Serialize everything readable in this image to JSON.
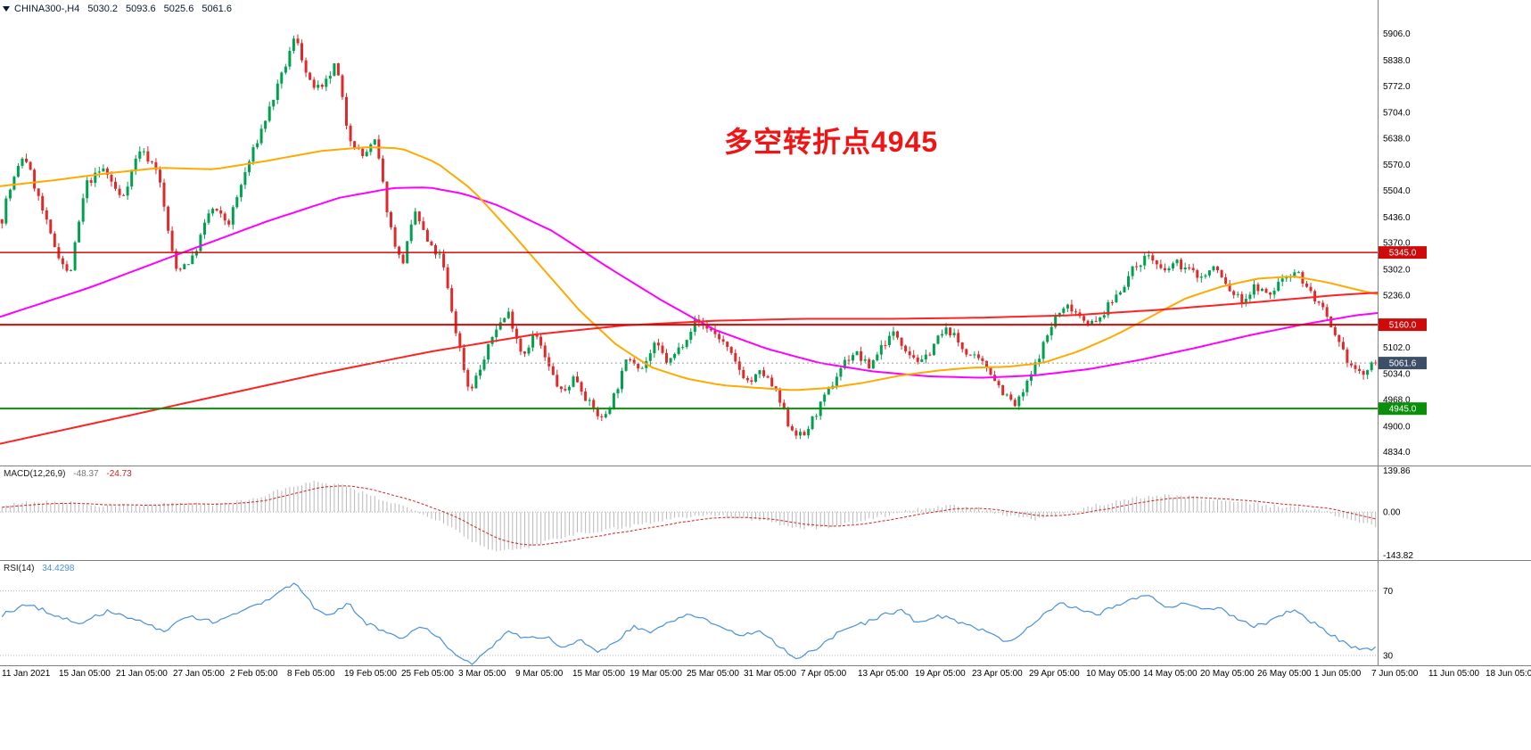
{
  "header": {
    "symbol": "CHINA300-,H4",
    "open": "5030.2",
    "high": "5093.6",
    "low": "5025.6",
    "close": "5061.6"
  },
  "annotation": {
    "text": "多空转折点4945",
    "color": "#f01414"
  },
  "macd_panel": {
    "label": "MACD(12,26,9)",
    "main_value": "-48.37",
    "signal_value": "-24.73",
    "axis_max": "139.86",
    "axis_zero": "0.00",
    "axis_min": "-143.82"
  },
  "rsi_panel": {
    "label": "RSI(14)",
    "value": "34.4298",
    "level_high": "70",
    "level_low": "30"
  },
  "time_axis": {
    "labels": [
      "11 Jan 2021",
      "15 Jan 05:00",
      "21 Jan 05:00",
      "27 Jan 05:00",
      "2 Feb 05:00",
      "8 Feb 05:00",
      "19 Feb 05:00",
      "25 Feb 05:00",
      "3 Mar 05:00",
      "9 Mar 05:00",
      "15 Mar 05:00",
      "19 Mar 05:00",
      "25 Mar 05:00",
      "31 Mar 05:00",
      "7 Apr 05:00",
      "13 Apr 05:00",
      "19 Apr 05:00",
      "23 Apr 05:00",
      "29 Apr 05:00",
      "10 May 05:00",
      "14 May 05:00",
      "20 May 05:00",
      "26 May 05:00",
      "1 Jun 05:00",
      "7 Jun 05:00",
      "11 Jun 05:00",
      "18 Jun 05:00"
    ]
  },
  "chart_data": {
    "type": "candlestick",
    "symbol": "CHINA300-",
    "timeframe": "H4",
    "last_bar": {
      "open": 5030.2,
      "high": 5093.6,
      "low": 5025.6,
      "close": 5061.6
    },
    "price_scale": {
      "min": 4790,
      "max": 5960,
      "ticks": [
        5906.0,
        5838.0,
        5772.0,
        5704.0,
        5638.0,
        5570.0,
        5504.0,
        5436.0,
        5370.0,
        5302.0,
        5236.0,
        5102.0,
        5034.0,
        4968.0,
        4900.0,
        4834.0
      ]
    },
    "hlines": [
      {
        "price": 5345.0,
        "color": "#cf0a0a",
        "width": 1.4,
        "style": "solid",
        "badge": "5345.0",
        "badge_color": "#cf0a0a"
      },
      {
        "price": 5160.0,
        "color": "#cf0a0a",
        "width": 2,
        "style": "solid",
        "badge": "5160.0",
        "badge_color": "#cf0a0a"
      },
      {
        "price": 4945.0,
        "color": "#0a8f0a",
        "width": 2,
        "style": "solid",
        "badge": "4945.0",
        "badge_color": "#0a8f0a"
      },
      {
        "price": 5061.6,
        "color": "#9a9a9a",
        "width": 1,
        "style": "dotted",
        "badge": "5061.6",
        "badge_color": "#3d4f66"
      }
    ],
    "candles": {
      "count": 340,
      "noise": 22,
      "wick": 13,
      "up_color": "#00a14e",
      "down_color": "#de2a2a",
      "path": [
        [
          0,
          5430
        ],
        [
          0.003,
          5480
        ],
        [
          0.016,
          5600
        ],
        [
          0.036,
          5380
        ],
        [
          0.049,
          5280
        ],
        [
          0.061,
          5520
        ],
        [
          0.074,
          5560
        ],
        [
          0.087,
          5480
        ],
        [
          0.1,
          5610
        ],
        [
          0.113,
          5560
        ],
        [
          0.126,
          5300
        ],
        [
          0.139,
          5330
        ],
        [
          0.152,
          5460
        ],
        [
          0.165,
          5420
        ],
        [
          0.178,
          5560
        ],
        [
          0.191,
          5680
        ],
        [
          0.204,
          5800
        ],
        [
          0.214,
          5905
        ],
        [
          0.223,
          5780
        ],
        [
          0.233,
          5760
        ],
        [
          0.243,
          5830
        ],
        [
          0.252,
          5650
        ],
        [
          0.262,
          5590
        ],
        [
          0.272,
          5630
        ],
        [
          0.282,
          5420
        ],
        [
          0.291,
          5310
        ],
        [
          0.301,
          5450
        ],
        [
          0.311,
          5360
        ],
        [
          0.32,
          5330
        ],
        [
          0.33,
          5150
        ],
        [
          0.34,
          4990
        ],
        [
          0.35,
          5060
        ],
        [
          0.359,
          5150
        ],
        [
          0.369,
          5190
        ],
        [
          0.379,
          5080
        ],
        [
          0.388,
          5140
        ],
        [
          0.398,
          5050
        ],
        [
          0.408,
          4980
        ],
        [
          0.417,
          5030
        ],
        [
          0.427,
          4960
        ],
        [
          0.437,
          4915
        ],
        [
          0.447,
          4990
        ],
        [
          0.456,
          5080
        ],
        [
          0.466,
          5050
        ],
        [
          0.476,
          5110
        ],
        [
          0.485,
          5060
        ],
        [
          0.495,
          5110
        ],
        [
          0.505,
          5170
        ],
        [
          0.515,
          5150
        ],
        [
          0.524,
          5120
        ],
        [
          0.534,
          5060
        ],
        [
          0.544,
          5010
        ],
        [
          0.553,
          5040
        ],
        [
          0.563,
          4990
        ],
        [
          0.573,
          4900
        ],
        [
          0.583,
          4870
        ],
        [
          0.592,
          4930
        ],
        [
          0.602,
          4990
        ],
        [
          0.612,
          5060
        ],
        [
          0.621,
          5090
        ],
        [
          0.631,
          5050
        ],
        [
          0.641,
          5110
        ],
        [
          0.65,
          5140
        ],
        [
          0.66,
          5090
        ],
        [
          0.67,
          5060
        ],
        [
          0.68,
          5120
        ],
        [
          0.689,
          5150
        ],
        [
          0.699,
          5100
        ],
        [
          0.709,
          5070
        ],
        [
          0.718,
          5050
        ],
        [
          0.728,
          4990
        ],
        [
          0.738,
          4950
        ],
        [
          0.748,
          5020
        ],
        [
          0.757,
          5100
        ],
        [
          0.767,
          5180
        ],
        [
          0.777,
          5210
        ],
        [
          0.786,
          5180
        ],
        [
          0.796,
          5160
        ],
        [
          0.806,
          5210
        ],
        [
          0.816,
          5260
        ],
        [
          0.825,
          5310
        ],
        [
          0.835,
          5340
        ],
        [
          0.845,
          5290
        ],
        [
          0.854,
          5320
        ],
        [
          0.864,
          5300
        ],
        [
          0.874,
          5280
        ],
        [
          0.883,
          5310
        ],
        [
          0.893,
          5250
        ],
        [
          0.903,
          5220
        ],
        [
          0.913,
          5260
        ],
        [
          0.922,
          5230
        ],
        [
          0.932,
          5280
        ],
        [
          0.942,
          5300
        ],
        [
          0.951,
          5250
        ],
        [
          0.961,
          5200
        ],
        [
          0.971,
          5120
        ],
        [
          0.981,
          5060
        ],
        [
          0.99,
          5030
        ],
        [
          1.0,
          5062
        ]
      ]
    },
    "moving_averages": [
      {
        "name": "ma-magenta",
        "color": "#ff00ff",
        "width": 2,
        "path": [
          [
            0,
            5180
          ],
          [
            0.065,
            5255
          ],
          [
            0.129,
            5340
          ],
          [
            0.194,
            5425
          ],
          [
            0.246,
            5485
          ],
          [
            0.285,
            5510
          ],
          [
            0.311,
            5512
          ],
          [
            0.337,
            5495
          ],
          [
            0.362,
            5465
          ],
          [
            0.401,
            5400
          ],
          [
            0.44,
            5310
          ],
          [
            0.479,
            5225
          ],
          [
            0.518,
            5148
          ],
          [
            0.557,
            5098
          ],
          [
            0.595,
            5062
          ],
          [
            0.634,
            5040
          ],
          [
            0.673,
            5028
          ],
          [
            0.712,
            5024
          ],
          [
            0.751,
            5030
          ],
          [
            0.79,
            5046
          ],
          [
            0.828,
            5070
          ],
          [
            0.867,
            5100
          ],
          [
            0.906,
            5132
          ],
          [
            0.945,
            5160
          ],
          [
            0.984,
            5184
          ],
          [
            1.0,
            5190
          ]
        ]
      },
      {
        "name": "ma-orange",
        "color": "#ffaa00",
        "width": 2,
        "path": [
          [
            0,
            5515
          ],
          [
            0.039,
            5530
          ],
          [
            0.078,
            5548
          ],
          [
            0.117,
            5562
          ],
          [
            0.155,
            5558
          ],
          [
            0.194,
            5580
          ],
          [
            0.233,
            5605
          ],
          [
            0.265,
            5615
          ],
          [
            0.291,
            5612
          ],
          [
            0.317,
            5575
          ],
          [
            0.343,
            5505
          ],
          [
            0.369,
            5405
          ],
          [
            0.395,
            5300
          ],
          [
            0.421,
            5195
          ],
          [
            0.447,
            5110
          ],
          [
            0.472,
            5052
          ],
          [
            0.498,
            5022
          ],
          [
            0.524,
            5005
          ],
          [
            0.55,
            4998
          ],
          [
            0.576,
            4992
          ],
          [
            0.602,
            4998
          ],
          [
            0.628,
            5012
          ],
          [
            0.654,
            5030
          ],
          [
            0.68,
            5042
          ],
          [
            0.706,
            5050
          ],
          [
            0.731,
            5052
          ],
          [
            0.757,
            5062
          ],
          [
            0.783,
            5092
          ],
          [
            0.809,
            5132
          ],
          [
            0.835,
            5180
          ],
          [
            0.861,
            5228
          ],
          [
            0.887,
            5258
          ],
          [
            0.913,
            5278
          ],
          [
            0.939,
            5284
          ],
          [
            0.964,
            5268
          ],
          [
            0.987,
            5248
          ],
          [
            1.0,
            5238
          ]
        ]
      },
      {
        "name": "ma-red-long",
        "color": "#ff2222",
        "width": 2,
        "path": [
          [
            0,
            4855
          ],
          [
            0.078,
            4915
          ],
          [
            0.155,
            4975
          ],
          [
            0.233,
            5035
          ],
          [
            0.311,
            5090
          ],
          [
            0.388,
            5135
          ],
          [
            0.453,
            5158
          ],
          [
            0.518,
            5170
          ],
          [
            0.583,
            5175
          ],
          [
            0.647,
            5175
          ],
          [
            0.712,
            5178
          ],
          [
            0.777,
            5184
          ],
          [
            0.841,
            5198
          ],
          [
            0.906,
            5216
          ],
          [
            0.971,
            5236
          ],
          [
            1.0,
            5242
          ]
        ]
      }
    ],
    "macd": {
      "range": [
        -155,
        150
      ],
      "hist_color": "#b8b8b8",
      "signal_color": "#d42020",
      "hist_path": [
        [
          0,
          20
        ],
        [
          0.026,
          35
        ],
        [
          0.052,
          30
        ],
        [
          0.078,
          20
        ],
        [
          0.104,
          25
        ],
        [
          0.129,
          30
        ],
        [
          0.155,
          25
        ],
        [
          0.181,
          40
        ],
        [
          0.207,
          80
        ],
        [
          0.227,
          100
        ],
        [
          0.246,
          90
        ],
        [
          0.265,
          60
        ],
        [
          0.285,
          30
        ],
        [
          0.304,
          0
        ],
        [
          0.324,
          -40
        ],
        [
          0.343,
          -100
        ],
        [
          0.362,
          -135
        ],
        [
          0.382,
          -120
        ],
        [
          0.401,
          -90
        ],
        [
          0.421,
          -70
        ],
        [
          0.44,
          -60
        ],
        [
          0.459,
          -45
        ],
        [
          0.479,
          -30
        ],
        [
          0.498,
          -15
        ],
        [
          0.518,
          -10
        ],
        [
          0.537,
          -20
        ],
        [
          0.557,
          -30
        ],
        [
          0.576,
          -50
        ],
        [
          0.595,
          -55
        ],
        [
          0.615,
          -40
        ],
        [
          0.634,
          -20
        ],
        [
          0.654,
          0
        ],
        [
          0.673,
          15
        ],
        [
          0.693,
          20
        ],
        [
          0.712,
          10
        ],
        [
          0.731,
          -10
        ],
        [
          0.751,
          -25
        ],
        [
          0.77,
          -10
        ],
        [
          0.79,
          15
        ],
        [
          0.809,
          35
        ],
        [
          0.828,
          50
        ],
        [
          0.848,
          55
        ],
        [
          0.867,
          50
        ],
        [
          0.887,
          40
        ],
        [
          0.906,
          30
        ],
        [
          0.926,
          20
        ],
        [
          0.945,
          15
        ],
        [
          0.964,
          0
        ],
        [
          0.984,
          -30
        ],
        [
          1.0,
          -48
        ]
      ]
    },
    "rsi": {
      "range": [
        25,
        88
      ],
      "color": "#4a90d9",
      "path": [
        [
          0,
          55
        ],
        [
          0.019,
          62
        ],
        [
          0.039,
          55
        ],
        [
          0.058,
          50
        ],
        [
          0.078,
          58
        ],
        [
          0.097,
          52
        ],
        [
          0.117,
          45
        ],
        [
          0.136,
          55
        ],
        [
          0.155,
          50
        ],
        [
          0.175,
          58
        ],
        [
          0.194,
          65
        ],
        [
          0.207,
          72
        ],
        [
          0.214,
          75
        ],
        [
          0.227,
          60
        ],
        [
          0.239,
          55
        ],
        [
          0.252,
          62
        ],
        [
          0.265,
          50
        ],
        [
          0.278,
          45
        ],
        [
          0.291,
          40
        ],
        [
          0.304,
          48
        ],
        [
          0.317,
          42
        ],
        [
          0.33,
          30
        ],
        [
          0.343,
          25
        ],
        [
          0.356,
          35
        ],
        [
          0.369,
          45
        ],
        [
          0.382,
          40
        ],
        [
          0.395,
          42
        ],
        [
          0.408,
          35
        ],
        [
          0.421,
          40
        ],
        [
          0.434,
          32
        ],
        [
          0.447,
          38
        ],
        [
          0.459,
          48
        ],
        [
          0.472,
          45
        ],
        [
          0.485,
          50
        ],
        [
          0.498,
          55
        ],
        [
          0.511,
          52
        ],
        [
          0.524,
          48
        ],
        [
          0.537,
          42
        ],
        [
          0.55,
          45
        ],
        [
          0.563,
          38
        ],
        [
          0.576,
          28
        ],
        [
          0.589,
          32
        ],
        [
          0.602,
          40
        ],
        [
          0.615,
          48
        ],
        [
          0.628,
          50
        ],
        [
          0.641,
          55
        ],
        [
          0.654,
          58
        ],
        [
          0.667,
          50
        ],
        [
          0.68,
          55
        ],
        [
          0.693,
          52
        ],
        [
          0.706,
          48
        ],
        [
          0.718,
          45
        ],
        [
          0.731,
          38
        ],
        [
          0.744,
          45
        ],
        [
          0.757,
          55
        ],
        [
          0.77,
          62
        ],
        [
          0.783,
          60
        ],
        [
          0.796,
          55
        ],
        [
          0.809,
          60
        ],
        [
          0.822,
          65
        ],
        [
          0.835,
          68
        ],
        [
          0.848,
          60
        ],
        [
          0.861,
          63
        ],
        [
          0.874,
          58
        ],
        [
          0.887,
          60
        ],
        [
          0.9,
          52
        ],
        [
          0.913,
          48
        ],
        [
          0.926,
          52
        ],
        [
          0.939,
          58
        ],
        [
          0.951,
          52
        ],
        [
          0.964,
          45
        ],
        [
          0.977,
          38
        ],
        [
          0.99,
          33
        ],
        [
          1.0,
          34.4
        ]
      ]
    }
  }
}
